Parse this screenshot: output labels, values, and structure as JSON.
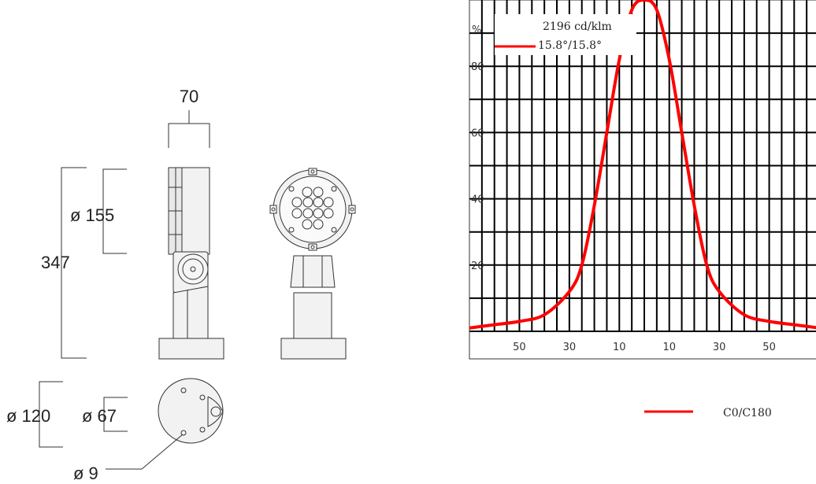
{
  "drawing": {
    "width_label": "70",
    "height_label": "347",
    "head_diameter_label": "ø 155",
    "base_diameter_label": "ø 120",
    "inner_diameter_label": "ø 67",
    "hole_label": "ø 9"
  },
  "chart_data": {
    "type": "line",
    "title": "",
    "ylabel": "%",
    "xlabel": "",
    "x_tick_labels": [
      "50",
      "30",
      "10",
      "10",
      "30",
      "50"
    ],
    "y_tick_labels": [
      "20",
      "40",
      "60",
      "80"
    ],
    "xlim": [
      -70,
      70
    ],
    "ylim": [
      0,
      100
    ],
    "grid": true,
    "annotation_intensity": "2196 cd/klm",
    "annotation_beam": "15.8°/15.8°",
    "legend_position": "bottom",
    "series": [
      {
        "name": "C0/C180",
        "color": "#ff0000",
        "x": [
          -70,
          -60,
          -50,
          -40,
          -30,
          -25,
          -20,
          -15,
          -10,
          -5,
          0,
          5,
          10,
          15,
          20,
          25,
          30,
          40,
          50,
          60,
          70
        ],
        "y": [
          1,
          2,
          3,
          5,
          12,
          20,
          38,
          60,
          82,
          97,
          100,
          97,
          82,
          60,
          38,
          20,
          12,
          5,
          3,
          2,
          1
        ]
      }
    ]
  }
}
